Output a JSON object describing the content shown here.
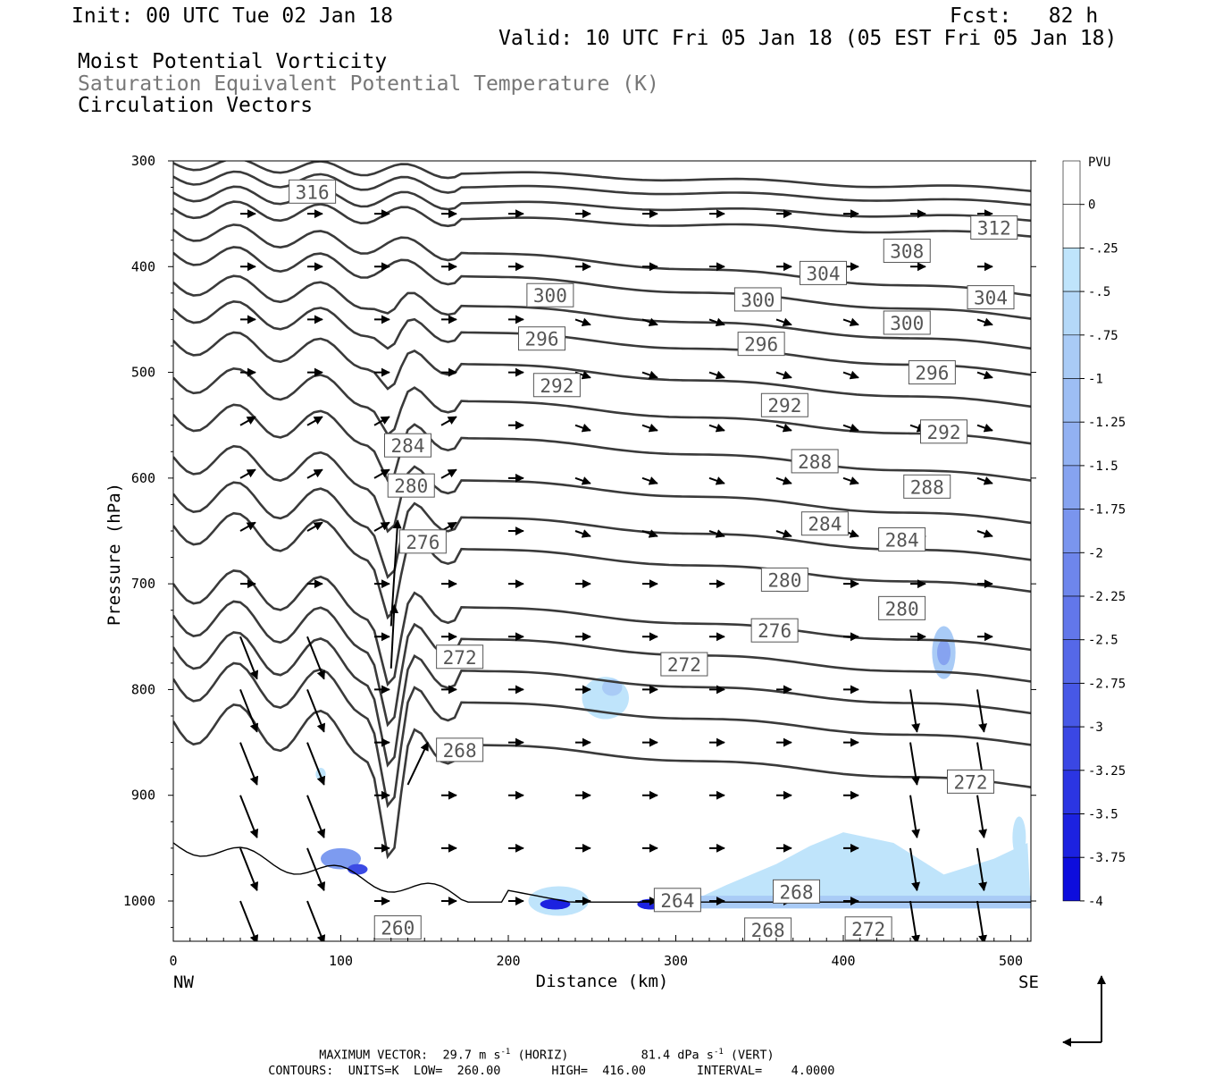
{
  "header": {
    "init": "Init: 00 UTC Tue 02 Jan 18",
    "fcst": "Fcst:   82 h",
    "valid": "Valid: 10 UTC Fri 05 Jan 18 (05 EST Fri 05 Jan 18)",
    "field1": "Moist Potential Vorticity",
    "field2": "Saturation Equivalent Potential Temperature (K)",
    "field3": "Circulation Vectors"
  },
  "footer": {
    "max_vector_label": "MAXIMUM VECTOR:",
    "max_horiz_value": "29.7 m s",
    "max_horiz_suffix": "(HORIZ)",
    "max_vert_value": "81.4 dPa s",
    "max_vert_suffix": "(VERT)",
    "contours_label": "CONTOURS:",
    "units": "UNITS=K",
    "low_label": "LOW=",
    "low_value": "260.00",
    "high_label": "HIGH=",
    "high_value": "416.00",
    "interval_label": "INTERVAL=",
    "interval_value": "4.0000"
  },
  "chart_data": {
    "type": "contour",
    "xlabel": "Distance (km)",
    "ylabel": "Pressure (hPa)",
    "x_ticks": [
      0,
      100,
      200,
      300,
      400,
      500
    ],
    "x_end_labels": {
      "left": "NW",
      "right": "SE"
    },
    "xlim": [
      0,
      512
    ],
    "ylim": [
      300,
      1040
    ],
    "y_ticks": [
      300,
      400,
      500,
      600,
      700,
      800,
      900,
      1000
    ],
    "contour_interval": 4,
    "contour_labels": [
      {
        "v": "316",
        "x": 83,
        "p": 329
      },
      {
        "v": "312",
        "x": 490,
        "p": 363
      },
      {
        "v": "308",
        "x": 438,
        "p": 385
      },
      {
        "v": "304",
        "x": 388,
        "p": 406
      },
      {
        "v": "304",
        "x": 488,
        "p": 429
      },
      {
        "v": "300",
        "x": 225,
        "p": 427
      },
      {
        "v": "300",
        "x": 349,
        "p": 431
      },
      {
        "v": "300",
        "x": 438,
        "p": 453
      },
      {
        "v": "296",
        "x": 220,
        "p": 468
      },
      {
        "v": "296",
        "x": 351,
        "p": 473
      },
      {
        "v": "296",
        "x": 453,
        "p": 500
      },
      {
        "v": "292",
        "x": 229,
        "p": 512
      },
      {
        "v": "292",
        "x": 365,
        "p": 531
      },
      {
        "v": "292",
        "x": 460,
        "p": 556
      },
      {
        "v": "284",
        "x": 140,
        "p": 569
      },
      {
        "v": "280",
        "x": 142,
        "p": 607
      },
      {
        "v": "288",
        "x": 383,
        "p": 584
      },
      {
        "v": "288",
        "x": 450,
        "p": 608
      },
      {
        "v": "284",
        "x": 389,
        "p": 643
      },
      {
        "v": "284",
        "x": 435,
        "p": 658
      },
      {
        "v": "276",
        "x": 149,
        "p": 660
      },
      {
        "v": "280",
        "x": 365,
        "p": 696
      },
      {
        "v": "280",
        "x": 435,
        "p": 723
      },
      {
        "v": "276",
        "x": 359,
        "p": 744
      },
      {
        "v": "272",
        "x": 171,
        "p": 769
      },
      {
        "v": "272",
        "x": 305,
        "p": 776
      },
      {
        "v": "268",
        "x": 171,
        "p": 857
      },
      {
        "v": "272",
        "x": 476,
        "p": 887
      },
      {
        "v": "264",
        "x": 301,
        "p": 999
      },
      {
        "v": "268",
        "x": 372,
        "p": 991
      },
      {
        "v": "268",
        "x": 355,
        "p": 1027
      },
      {
        "v": "272",
        "x": 415,
        "p": 1026
      },
      {
        "v": "260",
        "x": 134,
        "p": 1025
      }
    ],
    "colorbar": {
      "title": "PVU",
      "labels": [
        "0",
        "-.25",
        "-.5",
        "-.75",
        "-1",
        "-1.25",
        "-1.5",
        "-1.75",
        "-2",
        "-2.25",
        "-2.5",
        "-2.75",
        "-3",
        "-3.25",
        "-3.5",
        "-3.75",
        "-4"
      ],
      "colors": [
        "#ffffff",
        "#ffffff",
        "#bfe4fb",
        "#b4d8f8",
        "#a9cbf6",
        "#9dbef4",
        "#92b1f2",
        "#86a3f0",
        "#7a95ee",
        "#6e86ec",
        "#6277ea",
        "#5568e8",
        "#4758e6",
        "#3a47e4",
        "#2b35e2",
        "#1c22e0",
        "#0d0ddd"
      ]
    }
  }
}
